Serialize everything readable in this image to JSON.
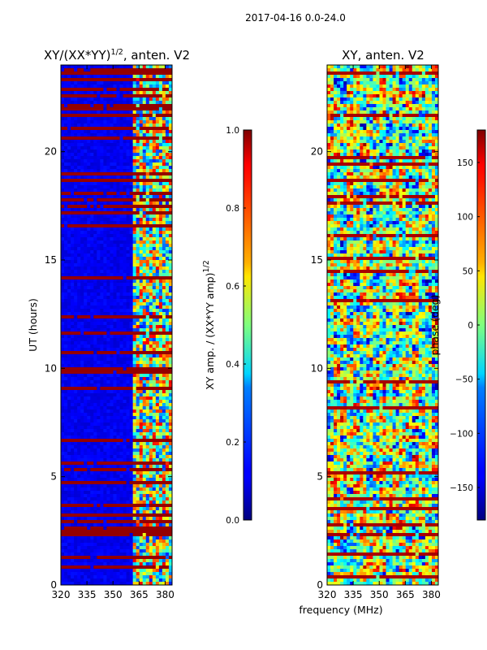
{
  "chart_data": {
    "type": "heatmap",
    "suptitle": "2017-04-16 0.0-24.0",
    "shared_xlabel": "frequency (MHz)",
    "panels": [
      {
        "title_main": "XY/(XX*YY)",
        "title_exponent": "1/2",
        "title_suffix": ", anten. V2",
        "ylabel": "UT (hours)",
        "xlim": [
          320,
          384
        ],
        "ylim": [
          0,
          24
        ],
        "xticks": [
          320,
          335,
          350,
          365,
          380
        ],
        "yticks": [
          0,
          5,
          10,
          15,
          20
        ],
        "colormap": "jet",
        "colorbar": {
          "label_main": "XY amp. / (XX*YY amp)",
          "label_exponent": "1/2",
          "range": [
            0.0,
            1.0
          ],
          "ticks": [
            "0.0",
            "0.2",
            "0.4",
            "0.6",
            "0.8",
            "1.0"
          ],
          "tick_values": [
            0.0,
            0.2,
            0.4,
            0.6,
            0.8,
            1.0
          ]
        }
      },
      {
        "title": "XY, anten. V2",
        "xlim": [
          320,
          384
        ],
        "ylim": [
          0,
          24
        ],
        "xticks": [
          320,
          335,
          350,
          365,
          380
        ],
        "yticks": [
          0,
          5,
          10,
          15,
          20
        ],
        "colormap": "jet",
        "colorbar": {
          "label": "phase (deg)",
          "range": [
            -180,
            180
          ],
          "ticks": [
            "150",
            "100",
            "50",
            "0",
            "−50",
            "−100",
            "−150"
          ],
          "tick_values": [
            150,
            100,
            50,
            0,
            -50,
            -100,
            -150
          ]
        }
      }
    ]
  }
}
